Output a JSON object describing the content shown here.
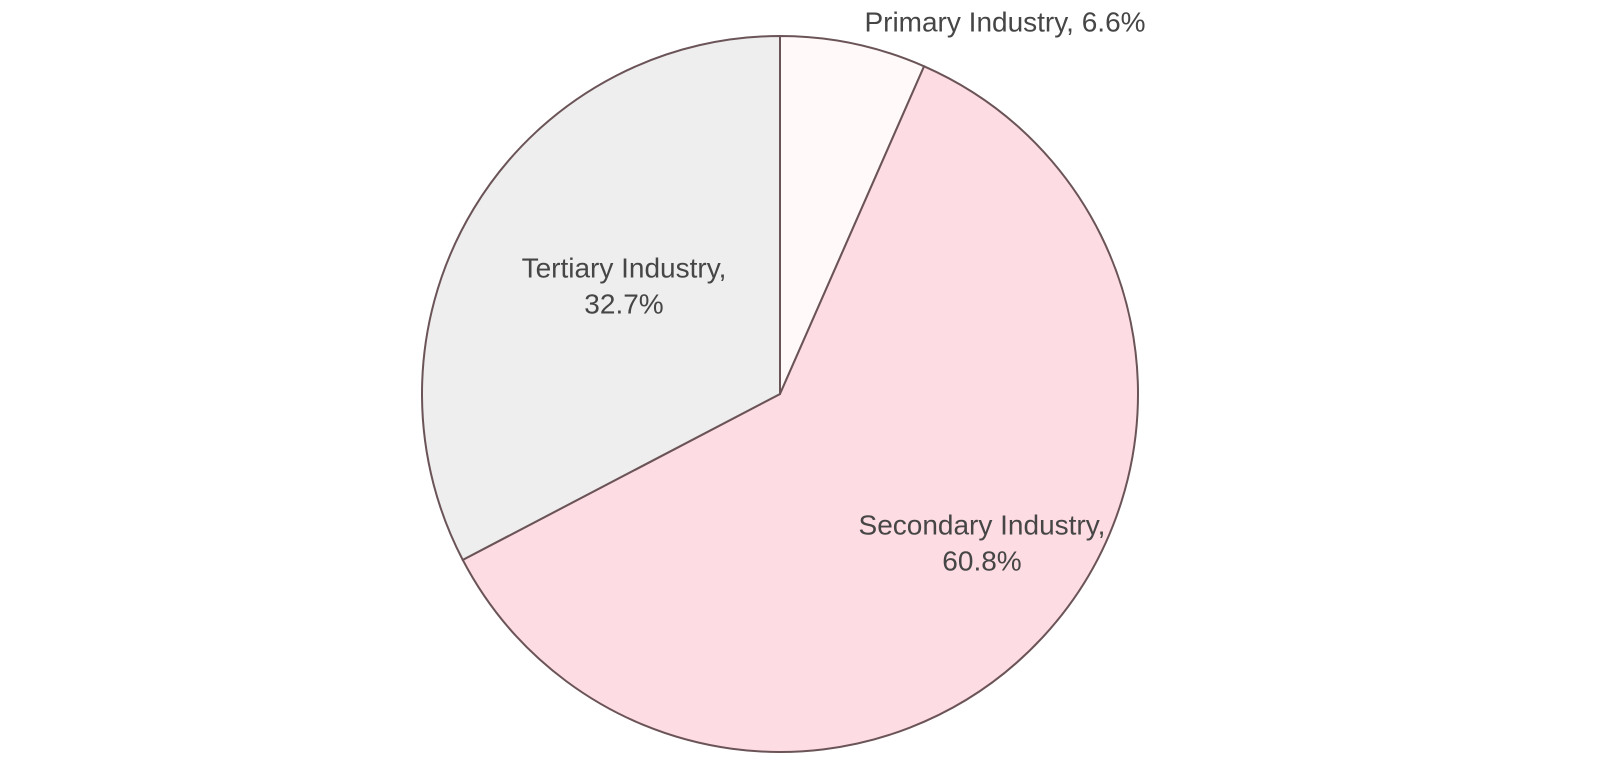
{
  "chart_data": {
    "type": "pie",
    "start_angle": "12 o'clock",
    "direction": "clockwise",
    "stroke_color": "#6b5458",
    "slices": [
      {
        "label": "Primary Industry",
        "value": 6.6,
        "display": [
          "Primary Industry, 6.6%"
        ],
        "color": "#fff9f9"
      },
      {
        "label": "Secondary Industry",
        "value": 60.8,
        "display": [
          "Secondary Industry,",
          "60.8%"
        ],
        "color": "#fddce3"
      },
      {
        "label": "Tertiary Industry",
        "value": 32.7,
        "display": [
          "Tertiary Industry,",
          "32.7%"
        ],
        "color": "#eeeeee"
      }
    ]
  }
}
